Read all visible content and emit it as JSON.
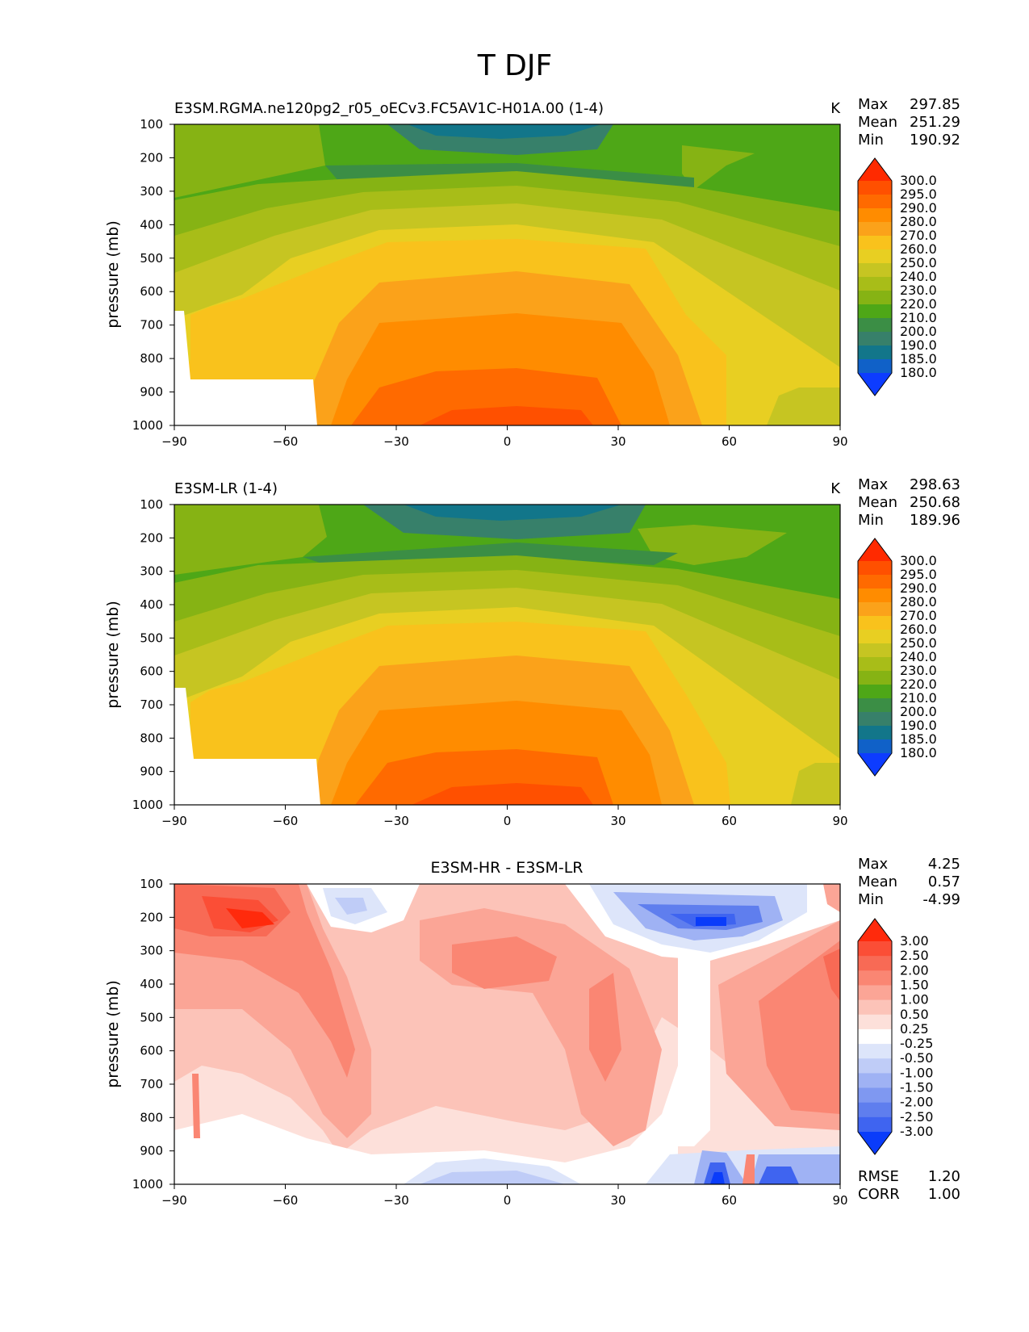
{
  "figure_title": "T DJF",
  "chart_data": [
    {
      "type": "heatmap",
      "id": "panel1",
      "title": "E3SM.RGMA.ne120pg2_r05_oECv3.FC5AV1C-H01A.00 (1-4)",
      "units": "K",
      "xlabel": "",
      "ylabel": "pressure (mb)",
      "xlim": [
        -90,
        90
      ],
      "ylim": [
        1000,
        100
      ],
      "xticks": [
        "−90",
        "−60",
        "−30",
        "0",
        "30",
        "60",
        "90"
      ],
      "yticks": [
        "100",
        "200",
        "300",
        "400",
        "500",
        "600",
        "700",
        "800",
        "900",
        "1000"
      ],
      "stats": {
        "max_label": "Max",
        "max": "297.85",
        "mean_label": "Mean",
        "mean": "251.29",
        "min_label": "Min",
        "min": "190.92"
      },
      "levels": [
        "300.0",
        "295.0",
        "290.0",
        "280.0",
        "270.0",
        "260.0",
        "250.0",
        "240.0",
        "230.0",
        "220.0",
        "210.0",
        "200.0",
        "190.0",
        "185.0",
        "180.0"
      ],
      "colors": [
        "#ff2a00",
        "#ff5000",
        "#ff6a00",
        "#ff8c00",
        "#fba21a",
        "#f9c21c",
        "#e8cf22",
        "#c6c522",
        "#a8bd18",
        "#86b314",
        "#4ea717",
        "#3b8e45",
        "#37806a",
        "#12768a",
        "#1061c8",
        "#0d3cff"
      ],
      "field": "temperature",
      "masked_topography": true
    },
    {
      "type": "heatmap",
      "id": "panel2",
      "title": "E3SM-LR (1-4)",
      "units": "K",
      "xlabel": "",
      "ylabel": "pressure (mb)",
      "xlim": [
        -90,
        90
      ],
      "ylim": [
        1000,
        100
      ],
      "xticks": [
        "−90",
        "−60",
        "−30",
        "0",
        "30",
        "60",
        "90"
      ],
      "yticks": [
        "100",
        "200",
        "300",
        "400",
        "500",
        "600",
        "700",
        "800",
        "900",
        "1000"
      ],
      "stats": {
        "max_label": "Max",
        "max": "298.63",
        "mean_label": "Mean",
        "mean": "250.68",
        "min_label": "Min",
        "min": "189.96"
      },
      "levels": [
        "300.0",
        "295.0",
        "290.0",
        "280.0",
        "270.0",
        "260.0",
        "250.0",
        "240.0",
        "230.0",
        "220.0",
        "210.0",
        "200.0",
        "190.0",
        "185.0",
        "180.0"
      ],
      "colors": [
        "#ff2a00",
        "#ff5000",
        "#ff6a00",
        "#ff8c00",
        "#fba21a",
        "#f9c21c",
        "#e8cf22",
        "#c6c522",
        "#a8bd18",
        "#86b314",
        "#4ea717",
        "#3b8e45",
        "#37806a",
        "#12768a",
        "#1061c8",
        "#0d3cff"
      ],
      "field": "temperature",
      "masked_topography": true
    },
    {
      "type": "heatmap",
      "id": "panel3",
      "title": "E3SM-HR - E3SM-LR",
      "units": "",
      "xlabel": "",
      "ylabel": "pressure (mb)",
      "xlim": [
        -90,
        90
      ],
      "ylim": [
        1000,
        100
      ],
      "xticks": [
        "−90",
        "−60",
        "−30",
        "0",
        "30",
        "60",
        "90"
      ],
      "yticks": [
        "100",
        "200",
        "300",
        "400",
        "500",
        "600",
        "700",
        "800",
        "900",
        "1000"
      ],
      "stats": {
        "max_label": "Max",
        "max": "4.25",
        "mean_label": "Mean",
        "mean": "0.57",
        "min_label": "Min",
        "min": "-4.99"
      },
      "extra_stats": {
        "rmse_label": "RMSE",
        "rmse": "1.20",
        "corr_label": "CORR",
        "corr": "1.00"
      },
      "levels": [
        "3.00",
        "2.50",
        "2.00",
        "1.50",
        "1.00",
        "0.50",
        "0.25",
        "-0.25",
        "-0.50",
        "-1.00",
        "-1.50",
        "-2.00",
        "-2.50",
        "-3.00"
      ],
      "colors": [
        "#ff2a0c",
        "#fb4e36",
        "#f86a55",
        "#fa8673",
        "#fba596",
        "#fcc3b8",
        "#fde0da",
        "#ffffff",
        "#dde5fa",
        "#bfccf7",
        "#9fb2f4",
        "#7f98f1",
        "#5f7eee",
        "#3f64f0",
        "#0a3cfa"
      ],
      "field": "difference"
    }
  ]
}
